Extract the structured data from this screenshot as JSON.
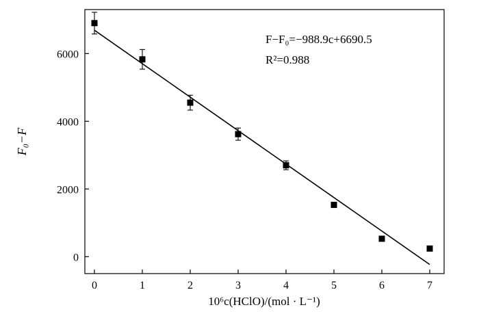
{
  "chart_data": {
    "type": "scatter",
    "title": "",
    "xlabel": "10⁶c(HClO)/(mol · L⁻¹)",
    "ylabel": "F₀−F",
    "xlim": [
      -0.2,
      7.3
    ],
    "ylim": [
      -500,
      7300
    ],
    "x_ticks": [
      0,
      1,
      2,
      3,
      4,
      5,
      6,
      7
    ],
    "x_tick_labels": [
      "0",
      "1",
      "2",
      "3",
      "4",
      "5",
      "6",
      "7"
    ],
    "y_ticks": [
      0,
      2000,
      4000,
      6000
    ],
    "y_tick_labels": [
      "0",
      "2000",
      "4000",
      "6000"
    ],
    "grid": false,
    "legend": "none",
    "marker": "square",
    "color": "#000000",
    "series": [
      {
        "x": [
          0,
          1,
          2,
          3,
          4,
          5,
          6,
          7
        ],
        "y": [
          6900,
          5830,
          4550,
          3620,
          2700,
          1530,
          530,
          240
        ],
        "error": [
          320,
          290,
          220,
          180,
          130,
          0,
          0,
          0
        ]
      }
    ],
    "fit": {
      "slope": -988.9,
      "intercept": 6690.5,
      "x_range": [
        0,
        7
      ]
    },
    "annotations": {
      "equation": "F−F₀=−988.9c+6690.5",
      "r_squared": "R²=0.988"
    }
  }
}
